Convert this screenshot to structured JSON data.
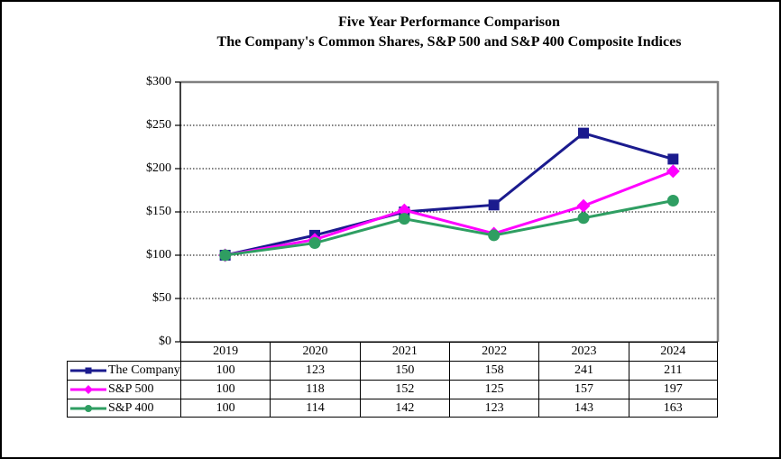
{
  "title": {
    "line1": "Five Year Performance Comparison",
    "line2": "The Company's Common Shares, S&P 500 and S&P 400 Composite Indices"
  },
  "chart_data": {
    "type": "line",
    "categories": [
      "2019",
      "2020",
      "2021",
      "2022",
      "2023",
      "2024"
    ],
    "series": [
      {
        "name": "The Company",
        "values": [
          100,
          123,
          150,
          158,
          241,
          211
        ],
        "color": "#1b1b8e",
        "marker": "square"
      },
      {
        "name": "S&P 500",
        "values": [
          100,
          118,
          152,
          125,
          157,
          197
        ],
        "color": "#ff00ff",
        "marker": "diamond"
      },
      {
        "name": "S&P 400",
        "values": [
          100,
          114,
          142,
          123,
          143,
          163
        ],
        "color": "#2f9e62",
        "marker": "circle"
      }
    ],
    "ylim": [
      0,
      300
    ],
    "ytick_step": 50,
    "ytick_labels": [
      "$0",
      "$50",
      "$100",
      "$150",
      "$200",
      "$250",
      "$300"
    ],
    "grid": "horizontal-dotted",
    "legend_position": "table-left",
    "data_table": true
  },
  "colors": {
    "plot_border_gray": "#808080",
    "axis_black": "#000000",
    "gridline": "#000000",
    "background": "#ffffff"
  }
}
